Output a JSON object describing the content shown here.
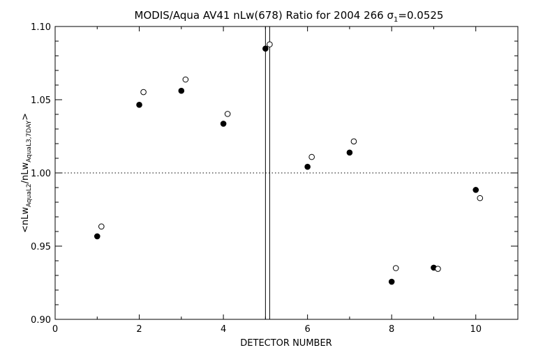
{
  "chart_data": {
    "type": "scatter",
    "title": "MODIS/Aqua AV41 nLw(678) Ratio for 2004 266 σ₁=0.0525",
    "title_parts": {
      "main": "MODIS/Aqua AV41 nLw(678) Ratio for 2004 266 σ",
      "sub": "1",
      "tail": "=0.0525"
    },
    "xlabel": "DETECTOR NUMBER",
    "ylabel_parts": {
      "a": "<nLw",
      "a_sub": "AquaL2",
      "b": "/nLw",
      "b_sub": "AquaL3,7DAY",
      "c": ">"
    },
    "xlim": [
      0,
      11
    ],
    "ylim": [
      0.9,
      1.1
    ],
    "x_ticks": [
      0,
      2,
      4,
      6,
      8,
      10
    ],
    "x_tick_labels": [
      "0",
      "2",
      "4",
      "6",
      "8",
      "10"
    ],
    "y_ticks": [
      0.9,
      0.95,
      1.0,
      1.05,
      1.1
    ],
    "y_tick_labels": [
      "0.90",
      "0.95",
      "1.00",
      "1.05",
      "1.10"
    ],
    "reference_line_y": 1.0,
    "vertical_lines_x": [
      5.0,
      5.1
    ],
    "series": [
      {
        "marker": "filled-circle",
        "x": [
          1,
          2,
          3,
          4,
          5,
          6,
          7,
          8,
          9,
          10
        ],
        "y": [
          0.9567,
          1.0465,
          1.0561,
          1.0336,
          1.0849,
          1.0042,
          1.0139,
          0.9257,
          0.9353,
          0.9884
        ]
      },
      {
        "marker": "open-circle",
        "x": [
          1.1,
          2.1,
          3.1,
          4.1,
          5.1,
          6.1,
          7.1,
          8.1,
          9.1,
          10.1
        ],
        "y": [
          0.9634,
          1.0552,
          1.0638,
          1.0403,
          1.0878,
          1.0109,
          1.0215,
          0.935,
          0.9345,
          0.9828
        ]
      }
    ]
  }
}
